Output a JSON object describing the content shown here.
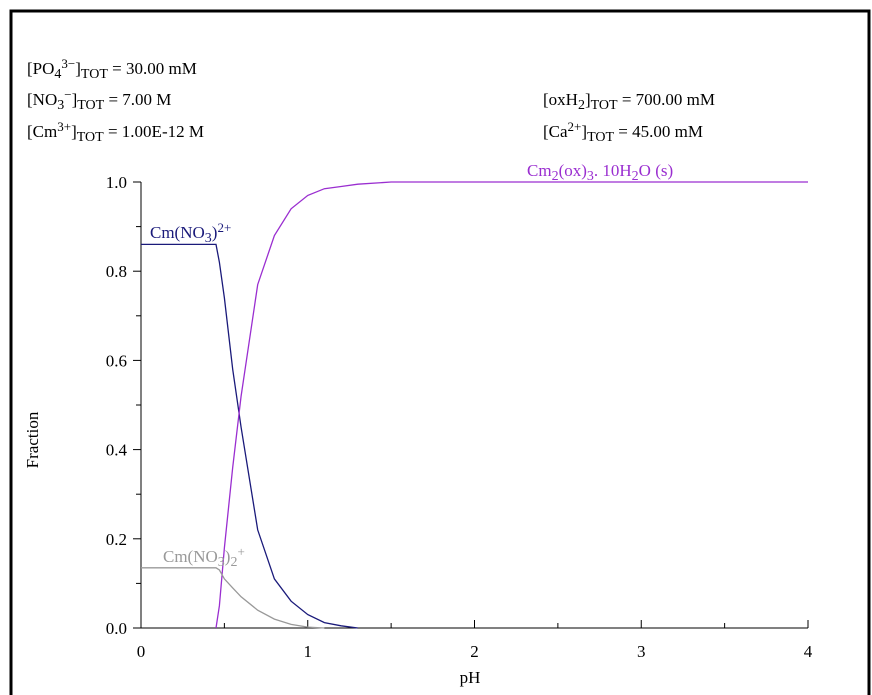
{
  "chart_data": {
    "type": "line",
    "xlabel": "pH",
    "ylabel": "Fraction",
    "annotations": [
      [
        {
          "base": "[PO"
        },
        {
          "sub": "4"
        },
        {
          "sup": "3−"
        },
        {
          "base": "]"
        },
        {
          "sub": "TOT"
        },
        {
          "base": " =   30.00 mM"
        }
      ],
      [
        {
          "base": "[NO"
        },
        {
          "sub": "3"
        },
        {
          "sup": "−"
        },
        {
          "base": "]"
        },
        {
          "sub": "TOT"
        },
        {
          "base": " =    7.00 M"
        }
      ],
      [
        {
          "base": "[Cm"
        },
        {
          "sup": "3+"
        },
        {
          "base": "]"
        },
        {
          "sub": "TOT"
        },
        {
          "base": " =  1.00E-12 M"
        }
      ],
      [
        {
          "base": "[oxH"
        },
        {
          "sub": "2"
        },
        {
          "base": "]"
        },
        {
          "sub": "TOT"
        },
        {
          "base": " =  700.00 mM"
        }
      ],
      [
        {
          "base": "[Ca"
        },
        {
          "sup": "2+"
        },
        {
          "base": "]"
        },
        {
          "sub": "TOT"
        },
        {
          "base": " =   45.00 mM"
        }
      ]
    ],
    "x": [
      0,
      0.45,
      0.47,
      0.5,
      0.55,
      0.6,
      0.7,
      0.8,
      0.9,
      1.0,
      1.1,
      1.2,
      1.3,
      1.5,
      2,
      3,
      4
    ],
    "series": [
      {
        "name": [
          {
            "base": "Cm(NO"
          },
          {
            "sub": "3"
          },
          {
            "base": ")"
          },
          {
            "sup": "2+"
          }
        ],
        "color": "#1a1a7a",
        "values": [
          0.86,
          0.86,
          0.82,
          0.74,
          0.58,
          0.45,
          0.22,
          0.11,
          0.06,
          0.03,
          0.012,
          0.005,
          0,
          null,
          null,
          null,
          null
        ]
      },
      {
        "name": [
          {
            "base": "Cm"
          },
          {
            "sub": "2"
          },
          {
            "base": "(ox)"
          },
          {
            "sub": "3"
          },
          {
            "base": ". 10H"
          },
          {
            "sub": "2"
          },
          {
            "base": "O (s)"
          }
        ],
        "color": "#9a2ed0",
        "values": [
          null,
          0,
          0.05,
          0.18,
          0.36,
          0.52,
          0.77,
          0.88,
          0.94,
          0.97,
          0.985,
          0.99,
          0.995,
          1,
          1,
          1,
          1
        ]
      },
      {
        "name": [
          {
            "base": "Cm(NO"
          },
          {
            "sub": "3"
          },
          {
            "base": ")"
          },
          {
            "sub": "2"
          },
          {
            "sup": "+"
          }
        ],
        "color": "#999999",
        "values": [
          0.135,
          0.135,
          0.13,
          0.11,
          0.09,
          0.07,
          0.04,
          0.02,
          0.008,
          0.002,
          0,
          null,
          null,
          null,
          null,
          null,
          null
        ]
      }
    ],
    "xlim": [
      0,
      4
    ],
    "xticks": [
      0,
      1,
      2,
      3,
      4
    ],
    "xminorticks": [
      0.5,
      1.5,
      2.5,
      3.5
    ],
    "ylim": [
      0,
      1
    ],
    "yticks": [
      {
        "value": 0,
        "label": "0.0"
      },
      {
        "value": 0.2,
        "label": "0.2"
      },
      {
        "value": 0.4,
        "label": "0.4"
      },
      {
        "value": 0.6,
        "label": "0.6"
      },
      {
        "value": 0.8,
        "label": "0.8"
      },
      {
        "value": 1,
        "label": "1.0"
      }
    ],
    "yminorticks": [
      0.1,
      0.3,
      0.5,
      0.7,
      0.9
    ]
  }
}
